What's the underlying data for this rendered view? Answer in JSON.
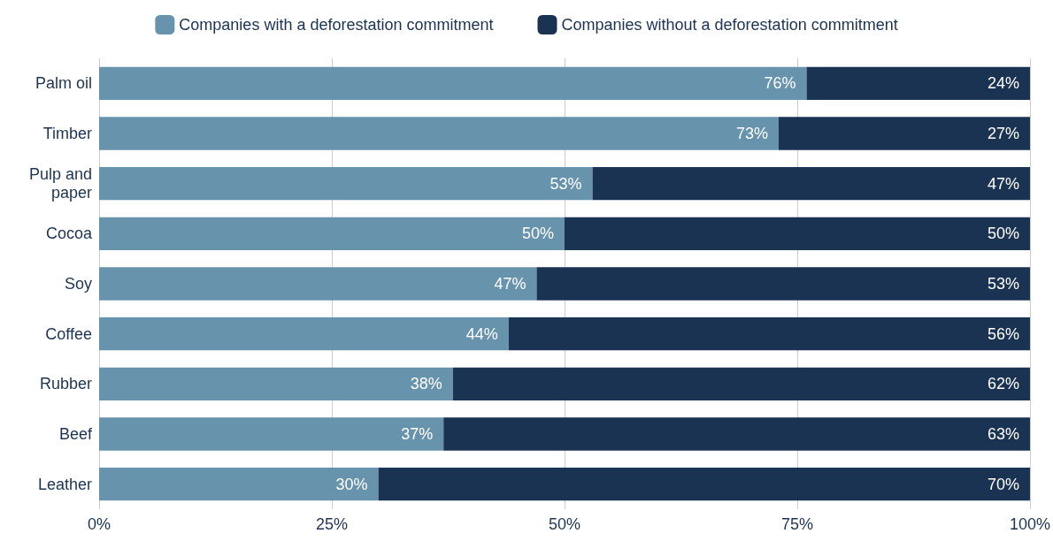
{
  "chart_data": {
    "type": "bar",
    "orientation": "horizontal",
    "stacked": true,
    "categories": [
      "Palm oil",
      "Timber",
      "Pulp and\npaper",
      "Cocoa",
      "Soy",
      "Coffee",
      "Rubber",
      "Beef",
      "Leather"
    ],
    "series": [
      {
        "name": "Companies with a deforestation commitment",
        "color": "#6893ac",
        "values": [
          76,
          73,
          53,
          50,
          47,
          44,
          38,
          37,
          30
        ],
        "value_labels": [
          "76%",
          "73%",
          "53%",
          "50%",
          "47%",
          "44%",
          "38%",
          "37%",
          "30%"
        ]
      },
      {
        "name": "Companies without a deforestation commitment",
        "color": "#1b3353",
        "values": [
          24,
          27,
          47,
          50,
          53,
          56,
          62,
          63,
          70
        ],
        "value_labels": [
          "24%",
          "27%",
          "47%",
          "50%",
          "53%",
          "56%",
          "62%",
          "63%",
          "70%"
        ]
      }
    ],
    "xlim": [
      0,
      100
    ],
    "xticks": [
      {
        "value": 0,
        "label": "0%"
      },
      {
        "value": 25,
        "label": "25%"
      },
      {
        "value": 50,
        "label": "50%"
      },
      {
        "value": 75,
        "label": "75%"
      },
      {
        "value": 100,
        "label": "100%"
      }
    ],
    "grid": "x",
    "legend": "top"
  }
}
